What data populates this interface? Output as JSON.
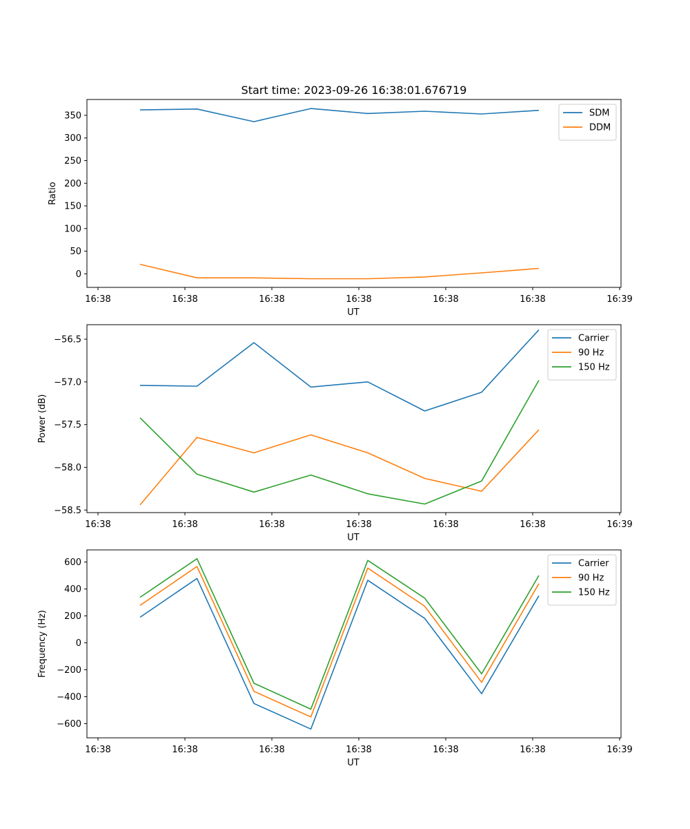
{
  "figure_title": "Start time: 2023-09-26 16:38:01.676719",
  "chart_data": [
    {
      "type": "line",
      "title": "Start time: 2023-09-26 16:38:01.676719",
      "xlabel": "UT",
      "ylabel": "Ratio",
      "x_tick_labels": [
        "16:38",
        "16:38",
        "16:38",
        "16:38",
        "16:38",
        "16:38",
        "16:39"
      ],
      "y_ticks": [
        0,
        50,
        100,
        150,
        200,
        250,
        300,
        350
      ],
      "ylim": [
        -30,
        385
      ],
      "grid": false,
      "legend": "top-right",
      "series": [
        {
          "name": "SDM",
          "color": "#1f77b4",
          "values": [
            362,
            364,
            336,
            365,
            354,
            359,
            353,
            361
          ]
        },
        {
          "name": "DDM",
          "color": "#ff7f0e",
          "values": [
            21,
            -9,
            -9,
            -11,
            -11,
            -7,
            2,
            12
          ]
        }
      ]
    },
    {
      "type": "line",
      "title": "",
      "xlabel": "UT",
      "ylabel": "Power (dB)",
      "x_tick_labels": [
        "16:38",
        "16:38",
        "16:38",
        "16:38",
        "16:38",
        "16:38",
        "16:39"
      ],
      "y_ticks": [
        -56.5,
        -57.0,
        -57.5,
        -58.0,
        -58.5
      ],
      "y_tick_labels": [
        "−56.5",
        "−57.0",
        "−57.5",
        "−58.0",
        "−58.5"
      ],
      "ylim": [
        -58.53,
        -56.33
      ],
      "grid": false,
      "legend": "top-right",
      "series": [
        {
          "name": "Carrier",
          "color": "#1f77b4",
          "values": [
            -57.04,
            -57.05,
            -56.54,
            -57.06,
            -57.0,
            -57.34,
            -57.12,
            -56.39
          ]
        },
        {
          "name": "90 Hz",
          "color": "#ff7f0e",
          "values": [
            -58.44,
            -57.65,
            -57.83,
            -57.62,
            -57.83,
            -58.13,
            -58.28,
            -57.56
          ]
        },
        {
          "name": "150 Hz",
          "color": "#2ca02c",
          "values": [
            -57.42,
            -58.08,
            -58.29,
            -58.09,
            -58.31,
            -58.43,
            -58.16,
            -56.98
          ]
        }
      ]
    },
    {
      "type": "line",
      "title": "",
      "xlabel": "UT",
      "ylabel": "Frequency (Hz)",
      "x_tick_labels": [
        "16:38",
        "16:38",
        "16:38",
        "16:38",
        "16:38",
        "16:38",
        "16:39"
      ],
      "y_ticks": [
        600,
        400,
        200,
        0,
        -200,
        -400,
        -600
      ],
      "y_tick_labels": [
        "600",
        "400",
        "200",
        "0",
        "−200",
        "−400",
        "−600"
      ],
      "ylim": [
        -705,
        690
      ],
      "grid": false,
      "legend": "top-right",
      "series": [
        {
          "name": "Carrier",
          "color": "#1f77b4",
          "values": [
            190,
            478,
            -450,
            -640,
            465,
            182,
            -378,
            350
          ]
        },
        {
          "name": "90 Hz",
          "color": "#ff7f0e",
          "values": [
            278,
            567,
            -360,
            -550,
            555,
            272,
            -293,
            440
          ]
        },
        {
          "name": "150 Hz",
          "color": "#2ca02c",
          "values": [
            338,
            625,
            -300,
            -492,
            612,
            332,
            -230,
            500
          ]
        }
      ]
    }
  ]
}
